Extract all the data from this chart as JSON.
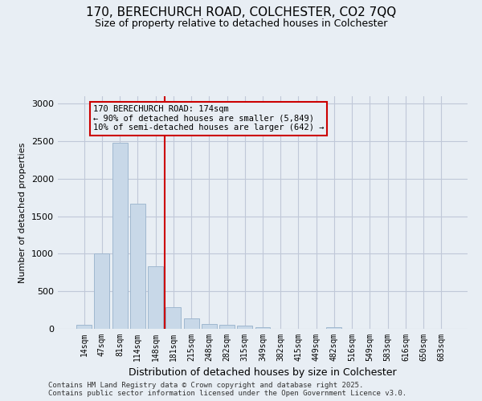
{
  "title_line1": "170, BERECHURCH ROAD, COLCHESTER, CO2 7QQ",
  "title_line2": "Size of property relative to detached houses in Colchester",
  "xlabel": "Distribution of detached houses by size in Colchester",
  "ylabel": "Number of detached properties",
  "categories": [
    "14sqm",
    "47sqm",
    "81sqm",
    "114sqm",
    "148sqm",
    "181sqm",
    "215sqm",
    "248sqm",
    "282sqm",
    "315sqm",
    "349sqm",
    "382sqm",
    "415sqm",
    "449sqm",
    "482sqm",
    "516sqm",
    "549sqm",
    "583sqm",
    "616sqm",
    "650sqm",
    "683sqm"
  ],
  "values": [
    55,
    1005,
    2480,
    1670,
    835,
    290,
    140,
    60,
    55,
    45,
    25,
    5,
    0,
    0,
    20,
    0,
    0,
    0,
    0,
    0,
    0
  ],
  "bar_color": "#c8d8e8",
  "bar_edge_color": "#a0b8d0",
  "grid_color": "#c0c8d8",
  "bg_color": "#e8eef4",
  "vline_index": 5,
  "vline_color": "#cc0000",
  "annotation_text": "170 BERECHURCH ROAD: 174sqm\n← 90% of detached houses are smaller (5,849)\n10% of semi-detached houses are larger (642) →",
  "annotation_box_color": "#cc0000",
  "footer_line1": "Contains HM Land Registry data © Crown copyright and database right 2025.",
  "footer_line2": "Contains public sector information licensed under the Open Government Licence v3.0.",
  "ylim": [
    0,
    3100
  ],
  "yticks": [
    0,
    500,
    1000,
    1500,
    2000,
    2500,
    3000
  ]
}
